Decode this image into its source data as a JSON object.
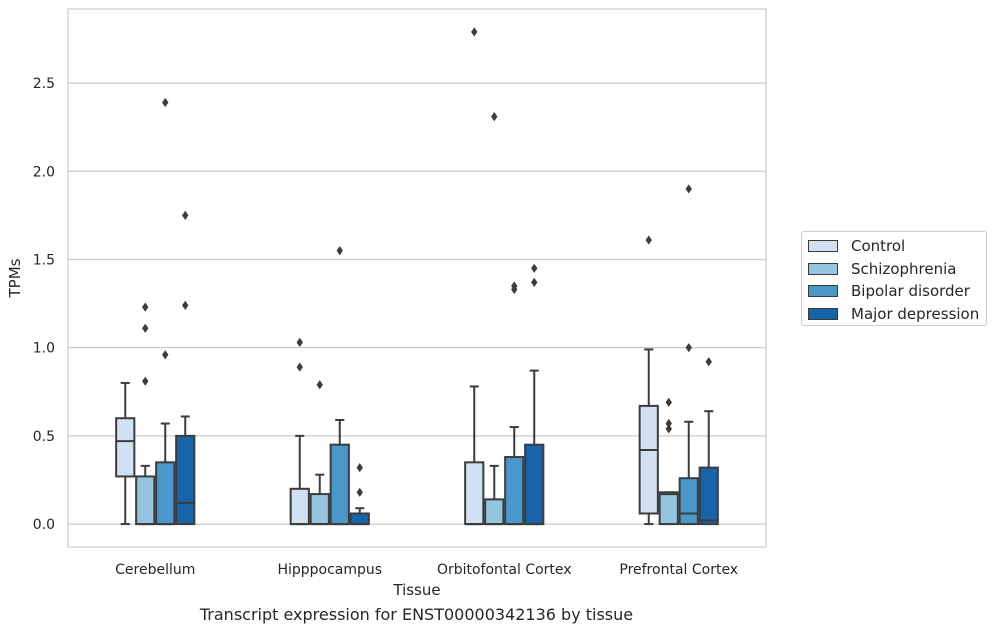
{
  "caption": "Transcript expression for ENST00000342136 by tissue",
  "legend": [
    {
      "label": "Control",
      "color": "#d0e1f2"
    },
    {
      "label": "Schizophrenia",
      "color": "#94c4df"
    },
    {
      "label": "Bipolar disorder",
      "color": "#4a98c9"
    },
    {
      "label": "Major depression",
      "color": "#1764ab"
    }
  ],
  "chart_data": {
    "type": "box",
    "xlabel": "Tissue",
    "ylabel": "TPMs",
    "ylim": [
      -0.13,
      2.92
    ],
    "yticks": [
      0.0,
      0.5,
      1.0,
      1.5,
      2.0,
      2.5
    ],
    "ytick_labels": [
      "0.0",
      "0.5",
      "1.0",
      "1.5",
      "2.0",
      "2.5"
    ],
    "grid": "horizontal",
    "legend_position": "right",
    "categories": [
      "Cerebellum",
      "Hipppocampus",
      "Orbitofontal Cortex",
      "Prefrontal Cortex"
    ],
    "series": [
      {
        "name": "Control",
        "color": "#d0e1f2",
        "boxes": [
          {
            "q1": 0.27,
            "median": 0.47,
            "q3": 0.6,
            "whisker_low": 0.0,
            "whisker_high": 0.8,
            "outliers": []
          },
          {
            "q1": 0.0,
            "median": 0.0,
            "q3": 0.2,
            "whisker_low": 0.0,
            "whisker_high": 0.5,
            "outliers": [
              0.89,
              1.03
            ]
          },
          {
            "q1": 0.0,
            "median": 0.0,
            "q3": 0.35,
            "whisker_low": 0.0,
            "whisker_high": 0.78,
            "outliers": [
              2.79
            ]
          },
          {
            "q1": 0.06,
            "median": 0.42,
            "q3": 0.67,
            "whisker_low": 0.0,
            "whisker_high": 0.99,
            "outliers": [
              1.61
            ]
          }
        ]
      },
      {
        "name": "Schizophrenia",
        "color": "#94c4df",
        "boxes": [
          {
            "q1": 0.0,
            "median": 0.0,
            "q3": 0.27,
            "whisker_low": 0.0,
            "whisker_high": 0.33,
            "outliers": [
              0.81,
              1.11,
              1.23
            ]
          },
          {
            "q1": 0.0,
            "median": 0.0,
            "q3": 0.17,
            "whisker_low": 0.0,
            "whisker_high": 0.28,
            "outliers": [
              0.79
            ]
          },
          {
            "q1": 0.0,
            "median": 0.0,
            "q3": 0.14,
            "whisker_low": 0.0,
            "whisker_high": 0.33,
            "outliers": [
              2.31
            ]
          },
          {
            "q1": 0.0,
            "median": 0.17,
            "q3": 0.18,
            "whisker_low": 0.0,
            "whisker_high": 0.18,
            "outliers": [
              0.54,
              0.57,
              0.69
            ]
          }
        ]
      },
      {
        "name": "Bipolar disorder",
        "color": "#4a98c9",
        "boxes": [
          {
            "q1": 0.0,
            "median": 0.0,
            "q3": 0.35,
            "whisker_low": 0.0,
            "whisker_high": 0.57,
            "outliers": [
              0.96,
              2.39
            ]
          },
          {
            "q1": 0.0,
            "median": 0.0,
            "q3": 0.45,
            "whisker_low": 0.0,
            "whisker_high": 0.59,
            "outliers": [
              1.55
            ]
          },
          {
            "q1": 0.0,
            "median": 0.0,
            "q3": 0.38,
            "whisker_low": 0.0,
            "whisker_high": 0.55,
            "outliers": [
              1.33,
              1.35
            ]
          },
          {
            "q1": 0.0,
            "median": 0.06,
            "q3": 0.26,
            "whisker_low": 0.0,
            "whisker_high": 0.58,
            "outliers": [
              1.0,
              1.9
            ]
          }
        ]
      },
      {
        "name": "Major depression",
        "color": "#1764ab",
        "boxes": [
          {
            "q1": 0.0,
            "median": 0.12,
            "q3": 0.5,
            "whisker_low": 0.0,
            "whisker_high": 0.61,
            "outliers": [
              1.24,
              1.75
            ]
          },
          {
            "q1": 0.0,
            "median": 0.0,
            "q3": 0.06,
            "whisker_low": 0.0,
            "whisker_high": 0.09,
            "outliers": [
              0.18,
              0.32
            ]
          },
          {
            "q1": 0.0,
            "median": 0.0,
            "q3": 0.45,
            "whisker_low": 0.0,
            "whisker_high": 0.87,
            "outliers": [
              1.37,
              1.45
            ]
          },
          {
            "q1": 0.0,
            "median": 0.02,
            "q3": 0.32,
            "whisker_low": 0.0,
            "whisker_high": 0.64,
            "outliers": [
              0.92
            ]
          }
        ]
      }
    ]
  }
}
